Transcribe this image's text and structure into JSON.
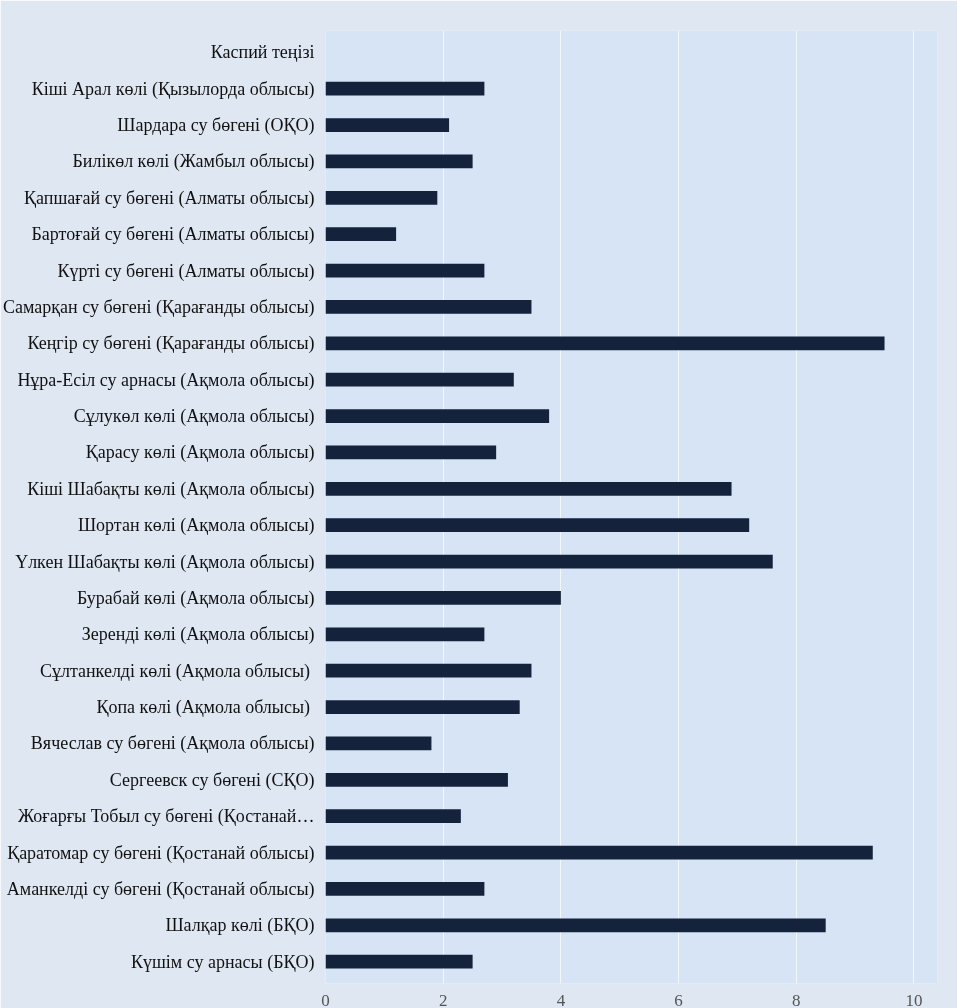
{
  "chart_data": {
    "type": "bar",
    "orientation": "horizontal",
    "categories": [
      "Каспий теңізі",
      "Кіші Арал көлі (Қызылорда облысы)",
      "Шардара су бөгені (ОҚО)",
      "Билікөл көлі (Жамбыл облысы)",
      "Қапшағай су бөгені (Алматы облысы)",
      "Бартоғай су бөгені (Алматы облысы)",
      "Күрті су бөгені (Алматы облысы)",
      "Самарқан су бөгені (Қарағанды облысы)",
      "Кеңгір су бөгені (Қарағанды облысы)",
      "Нұра-Есіл су арнасы (Ақмола облысы)",
      "Сұлукөл көлі (Ақмола облысы)",
      "Қарасу көлі (Ақмола облысы)",
      "Кіші Шабақты көлі (Ақмола облысы)",
      "Шортан көлі (Ақмола облысы)",
      "Үлкен Шабақты көлі (Ақмола облысы)",
      "Бурабай көлі (Ақмола облысы)",
      "Зеренді көлі (Ақмола облысы)",
      "Сұлтанкелді көлі  (Ақмола облысы)",
      "Қопа көлі  (Ақмола облысы)",
      "Вячеслав су бөгені (Ақмола облысы)",
      "Сергеевск су бөгені (СҚО)",
      "Жоғарғы Тобыл су бөгені (Қостанай…",
      "Қаратомар су бөгені (Қостанай облысы)",
      "Аманкелді су бөгені (Қостанай облысы)",
      "Шалқар көлі (БҚО)",
      "Күшім су арнасы (БҚО)"
    ],
    "values": [
      null,
      2.7,
      2.1,
      2.5,
      1.9,
      1.2,
      2.7,
      3.5,
      9.5,
      3.2,
      3.8,
      2.9,
      6.9,
      7.2,
      7.6,
      4.0,
      2.7,
      3.5,
      3.3,
      1.8,
      3.1,
      2.3,
      9.3,
      2.7,
      8.5,
      2.5
    ],
    "color": "#14223c",
    "xlim": [
      0,
      10.4
    ],
    "xticks": [
      0,
      2,
      4,
      6,
      8,
      10
    ],
    "grid": "x"
  }
}
